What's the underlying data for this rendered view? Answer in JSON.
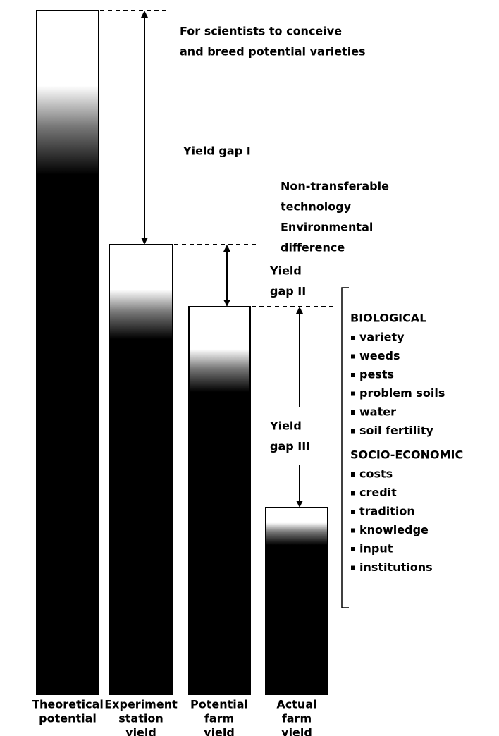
{
  "bars": [
    {
      "label": [
        "Theoretical",
        "potential"
      ]
    },
    {
      "label": [
        "Experiment",
        "station",
        "yield"
      ]
    },
    {
      "label": [
        "Potential",
        "farm",
        "yield"
      ]
    },
    {
      "label": [
        "Actual",
        "farm",
        "yield"
      ]
    }
  ],
  "gaps": [
    {
      "label": [
        "Yield gap I"
      ],
      "note": [
        "For scientists to conceive",
        "and breed potential varieties"
      ]
    },
    {
      "label": [
        "Yield",
        "gap II"
      ],
      "note": [
        "Non-transferable",
        "technology",
        "Environmental",
        "difference"
      ]
    },
    {
      "label": [
        "Yield",
        "gap III"
      ]
    }
  ],
  "factors": [
    {
      "heading": "BIOLOGICAL",
      "items": [
        "variety",
        "weeds",
        "pests",
        "problem soils",
        "water",
        "soil fertility"
      ]
    },
    {
      "heading": "SOCIO-ECONOMIC",
      "items": [
        "costs",
        "credit",
        "tradition",
        "knowledge",
        "input",
        "institutions"
      ]
    }
  ]
}
